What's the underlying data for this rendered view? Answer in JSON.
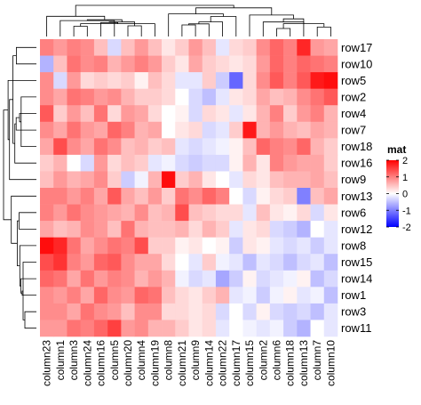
{
  "chart_data": {
    "type": "heatmap",
    "rows": [
      "row17",
      "row10",
      "row5",
      "row2",
      "row4",
      "row7",
      "row18",
      "row16",
      "row9",
      "row13",
      "row6",
      "row12",
      "row8",
      "row15",
      "row14",
      "row1",
      "row3",
      "row11"
    ],
    "columns": [
      "column23",
      "column1",
      "column3",
      "column24",
      "column16",
      "column5",
      "column20",
      "column4",
      "column19",
      "column8",
      "column21",
      "column9",
      "column14",
      "column22",
      "column17",
      "column15",
      "column2",
      "column6",
      "column18",
      "column13",
      "column7",
      "column10"
    ],
    "values": [
      [
        1.0,
        0.8,
        1.0,
        0.9,
        0.5,
        -0.3,
        0.5,
        0.8,
        0.5,
        0.2,
        0.4,
        0.8,
        0.5,
        -0.2,
        0.3,
        0.4,
        0.9,
        1.2,
        1.0,
        1.7,
        0.8,
        0.7
      ],
      [
        -0.6,
        0.5,
        1.1,
        0.9,
        1.0,
        0.6,
        0.8,
        1.0,
        0.8,
        0.4,
        0.2,
        0.7,
        0.4,
        0.3,
        0.2,
        0.3,
        0.8,
        1.2,
        1.0,
        1.2,
        1.1,
        1.0
      ],
      [
        0.9,
        -0.3,
        0.8,
        0.3,
        0.4,
        0.3,
        0.4,
        0.1,
        0.5,
        0.3,
        -0.2,
        -0.2,
        0.4,
        -0.4,
        -1.2,
        0.3,
        0.9,
        1.3,
        1.0,
        1.3,
        1.8,
        1.9
      ],
      [
        0.9,
        0.7,
        1.1,
        1.0,
        0.8,
        0.9,
        0.6,
        0.4,
        0.4,
        0.3,
        0.0,
        -0.3,
        -0.5,
        -0.2,
        0.2,
        0.3,
        0.7,
        0.5,
        0.6,
        0.9,
        1.1,
        1.3
      ],
      [
        1.3,
        0.4,
        0.8,
        0.5,
        1.1,
        0.3,
        0.8,
        0.7,
        0.3,
        0.0,
        0.1,
        -0.3,
        0.3,
        0.2,
        -0.2,
        0.2,
        0.6,
        1.0,
        0.4,
        0.8,
        1.0,
        0.6
      ],
      [
        0.9,
        0.7,
        1.1,
        0.8,
        0.7,
        1.2,
        1.0,
        0.6,
        0.7,
        0.0,
        0.2,
        0.3,
        -0.3,
        -0.2,
        0.4,
        1.8,
        0.6,
        0.8,
        0.6,
        0.5,
        0.7,
        0.6
      ],
      [
        0.7,
        1.4,
        0.9,
        0.7,
        1.1,
        0.9,
        0.5,
        0.6,
        0.4,
        0.5,
        -0.2,
        -0.3,
        -0.2,
        -0.1,
        0.1,
        0.5,
        1.2,
        1.0,
        0.9,
        1.2,
        0.6,
        0.4
      ],
      [
        0.4,
        0.6,
        0.0,
        -0.3,
        0.8,
        0.3,
        0.5,
        0.4,
        -0.2,
        -0.1,
        -0.3,
        -0.4,
        -0.3,
        -0.3,
        0.1,
        0.6,
        0.2,
        1.0,
        0.8,
        0.7,
        0.7,
        0.4
      ],
      [
        0.5,
        0.8,
        0.6,
        0.7,
        0.9,
        0.4,
        -0.4,
        -0.1,
        0.6,
        1.9,
        0.4,
        0.6,
        0.2,
        0.0,
        -0.2,
        0.3,
        0.2,
        0.5,
        0.6,
        0.6,
        0.7,
        0.5
      ],
      [
        1.0,
        1.0,
        0.8,
        1.0,
        0.7,
        1.3,
        0.7,
        0.5,
        0.8,
        0.4,
        1.1,
        0.9,
        1.2,
        1.0,
        0.0,
        -0.3,
        0.1,
        0.3,
        0.4,
        -1.0,
        0.5,
        0.7
      ],
      [
        1.0,
        0.8,
        1.1,
        0.9,
        0.8,
        0.7,
        0.6,
        0.9,
        0.5,
        0.6,
        1.4,
        0.5,
        0.4,
        0.3,
        0.3,
        -0.2,
        0.5,
        0.2,
        0.1,
        0.3,
        -0.3,
        0.2
      ],
      [
        0.7,
        0.5,
        0.6,
        0.9,
        0.8,
        0.5,
        1.1,
        0.6,
        0.5,
        0.5,
        0.6,
        0.3,
        0.6,
        0.4,
        -0.2,
        0.2,
        0.3,
        -0.3,
        -0.4,
        -0.6,
        0.0,
        -0.2
      ],
      [
        1.9,
        1.7,
        1.1,
        0.7,
        0.9,
        1.1,
        1.0,
        1.4,
        0.4,
        0.4,
        0.1,
        0.2,
        0.0,
        0.1,
        -0.4,
        0.2,
        0.1,
        -0.2,
        -0.3,
        -0.2,
        -0.4,
        -0.2
      ],
      [
        1.4,
        1.6,
        1.0,
        0.8,
        1.2,
        1.3,
        0.9,
        0.7,
        0.7,
        0.3,
        0.0,
        -0.2,
        0.4,
        -0.1,
        -0.2,
        -0.5,
        -0.2,
        -0.3,
        -0.5,
        -0.3,
        -0.2,
        -0.5
      ],
      [
        1.2,
        1.1,
        0.7,
        1.1,
        0.8,
        1.0,
        0.9,
        0.6,
        0.8,
        0.6,
        -0.1,
        -0.3,
        -0.2,
        -0.7,
        -0.4,
        0.1,
        -0.3,
        -0.2,
        -0.1,
        0.1,
        -0.5,
        -0.3
      ],
      [
        0.9,
        0.8,
        1.0,
        0.7,
        1.2,
        0.9,
        0.8,
        1.2,
        1.1,
        0.5,
        0.3,
        0.2,
        0.4,
        0.6,
        -0.2,
        -0.1,
        -0.4,
        -0.1,
        0.1,
        -0.2,
        -0.1,
        -0.5
      ],
      [
        0.9,
        0.9,
        0.7,
        1.1,
        0.9,
        0.8,
        0.5,
        0.9,
        0.9,
        0.3,
        0.3,
        0.2,
        0.3,
        -0.3,
        0.0,
        -0.3,
        0.1,
        -0.3,
        -0.4,
        -0.3,
        -0.5,
        -0.2
      ],
      [
        0.8,
        0.8,
        1.1,
        1.0,
        1.2,
        1.5,
        0.8,
        0.9,
        0.6,
        0.6,
        0.4,
        0.2,
        0.3,
        -0.2,
        0.0,
        -0.1,
        -0.2,
        -0.1,
        -0.4,
        -0.6,
        0.0,
        -0.2
      ]
    ],
    "legend_title": "mat",
    "legend_ticks": [
      2,
      1,
      0,
      -1,
      -2
    ],
    "color_scale": {
      "min": -2,
      "mid": 0,
      "max": 2,
      "low": "#0000ff",
      "mid_color": "#ffffff",
      "high": "#ff0000"
    },
    "row_dendrogram": "left",
    "column_dendrogram": "top"
  }
}
